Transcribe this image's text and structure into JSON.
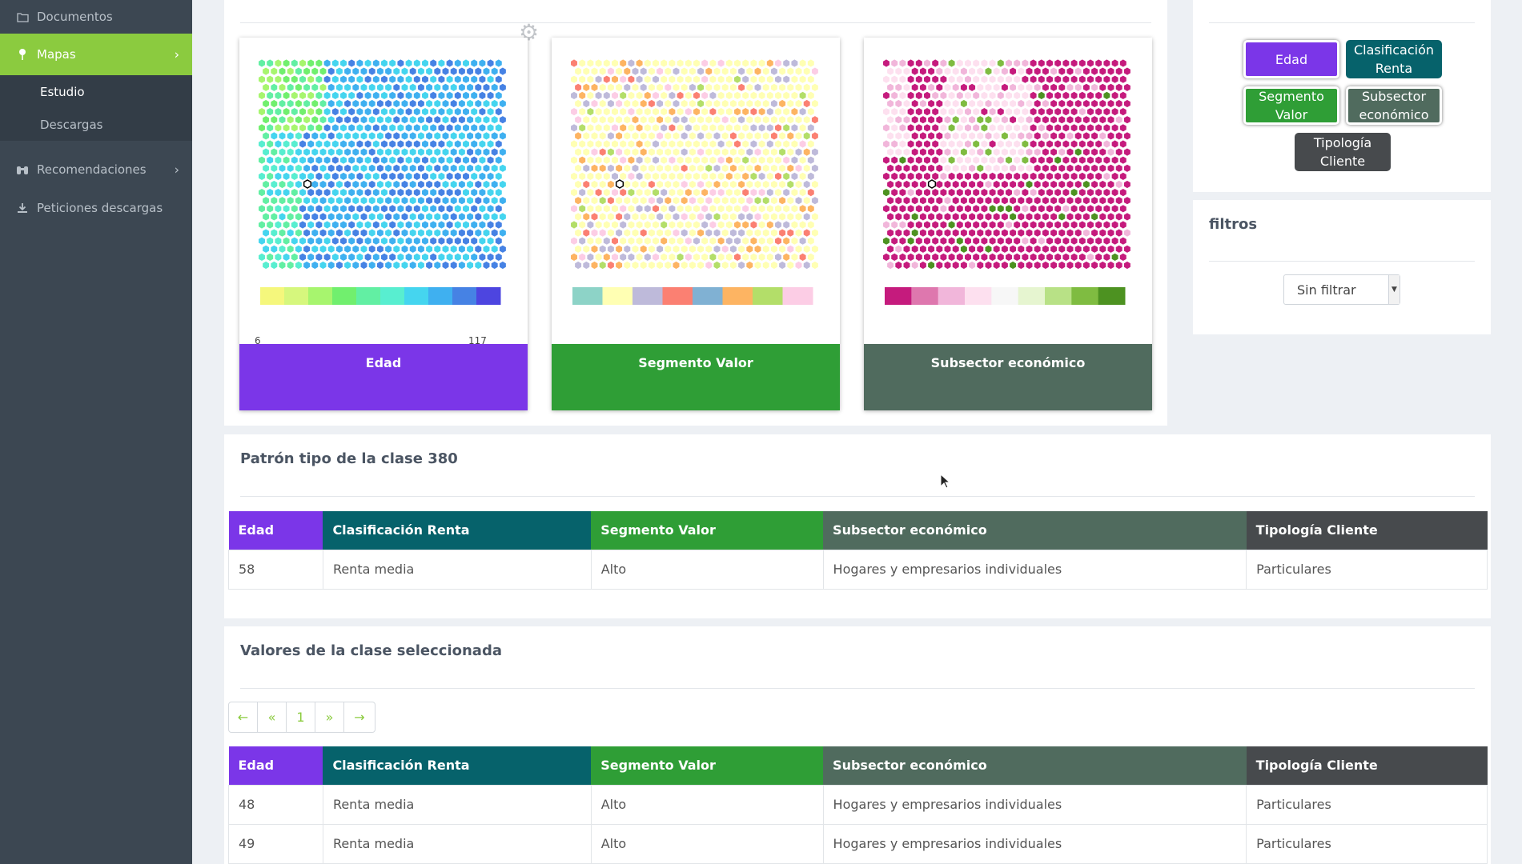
{
  "sidebar": {
    "items": [
      {
        "label": "Documentos",
        "icon": "folder-icon"
      },
      {
        "label": "Mapas",
        "icon": "map-pin-icon"
      },
      {
        "label": "Recomendaciones",
        "icon": "binoculars-icon"
      },
      {
        "label": "Peticiones descargas",
        "icon": "download-icon"
      }
    ],
    "sub_items": [
      {
        "label": "Estudio"
      },
      {
        "label": "Descargas"
      }
    ]
  },
  "maps": [
    {
      "label": "Edad",
      "color": "#7b36e8",
      "legend_min": "6",
      "legend_max": "117",
      "legend": [
        "#f5f77c",
        "#d6f77d",
        "#a7f56e",
        "#71ef6e",
        "#62efa3",
        "#58eed0",
        "#45d5ef",
        "#3fb0f0",
        "#4682e4",
        "#4d45e0"
      ]
    },
    {
      "label": "Segmento Valor",
      "color": "#2f9e36",
      "legend": [
        "#8dd3c7",
        "#ffffb3",
        "#bebada",
        "#fb8072",
        "#80b1d3",
        "#fdb462",
        "#b3de69",
        "#fccde5"
      ]
    },
    {
      "label": "Subsector económico",
      "color": "#506b5e",
      "legend": [
        "#c51b7d",
        "#de77ae",
        "#f1b6da",
        "#fde0ef",
        "#f7f7f7",
        "#e6f5d0",
        "#b8e186",
        "#7fbc41",
        "#4d9221"
      ]
    }
  ],
  "variables": [
    {
      "label": "Edad",
      "color": "#7b36e8",
      "selected": true
    },
    {
      "label": "Clasificación Renta",
      "color": "#06626b",
      "selected": false
    },
    {
      "label": "Segmento Valor",
      "color": "#2f9e36",
      "selected": true
    },
    {
      "label": "Subsector económico",
      "color": "#506b5e",
      "selected": true
    },
    {
      "label": "Tipología Cliente",
      "color": "#474a4d",
      "selected": false
    }
  ],
  "filters": {
    "title": "filtros",
    "select_value": "Sin filtrar"
  },
  "pattern": {
    "title": "Patrón tipo de la clase 380"
  },
  "values_section": {
    "title": "Valores de la clase seleccionada"
  },
  "table": {
    "headers": [
      "Edad",
      "Clasificación Renta",
      "Segmento Valor",
      "Subsector económico",
      "Tipología Cliente"
    ],
    "header_colors": [
      "#7b36e8",
      "#06626b",
      "#2f9e36",
      "#506b5e",
      "#474a4d"
    ],
    "pattern_row": [
      "58",
      "Renta media",
      "Alto",
      "Hogares y empresarios individuales",
      "Particulares"
    ],
    "value_rows": [
      [
        "48",
        "Renta media",
        "Alto",
        "Hogares y empresarios individuales",
        "Particulares"
      ],
      [
        "49",
        "Renta media",
        "Alto",
        "Hogares y empresarios individuales",
        "Particulares"
      ]
    ]
  },
  "pager": [
    "←",
    "«",
    "1",
    "»",
    "→"
  ]
}
